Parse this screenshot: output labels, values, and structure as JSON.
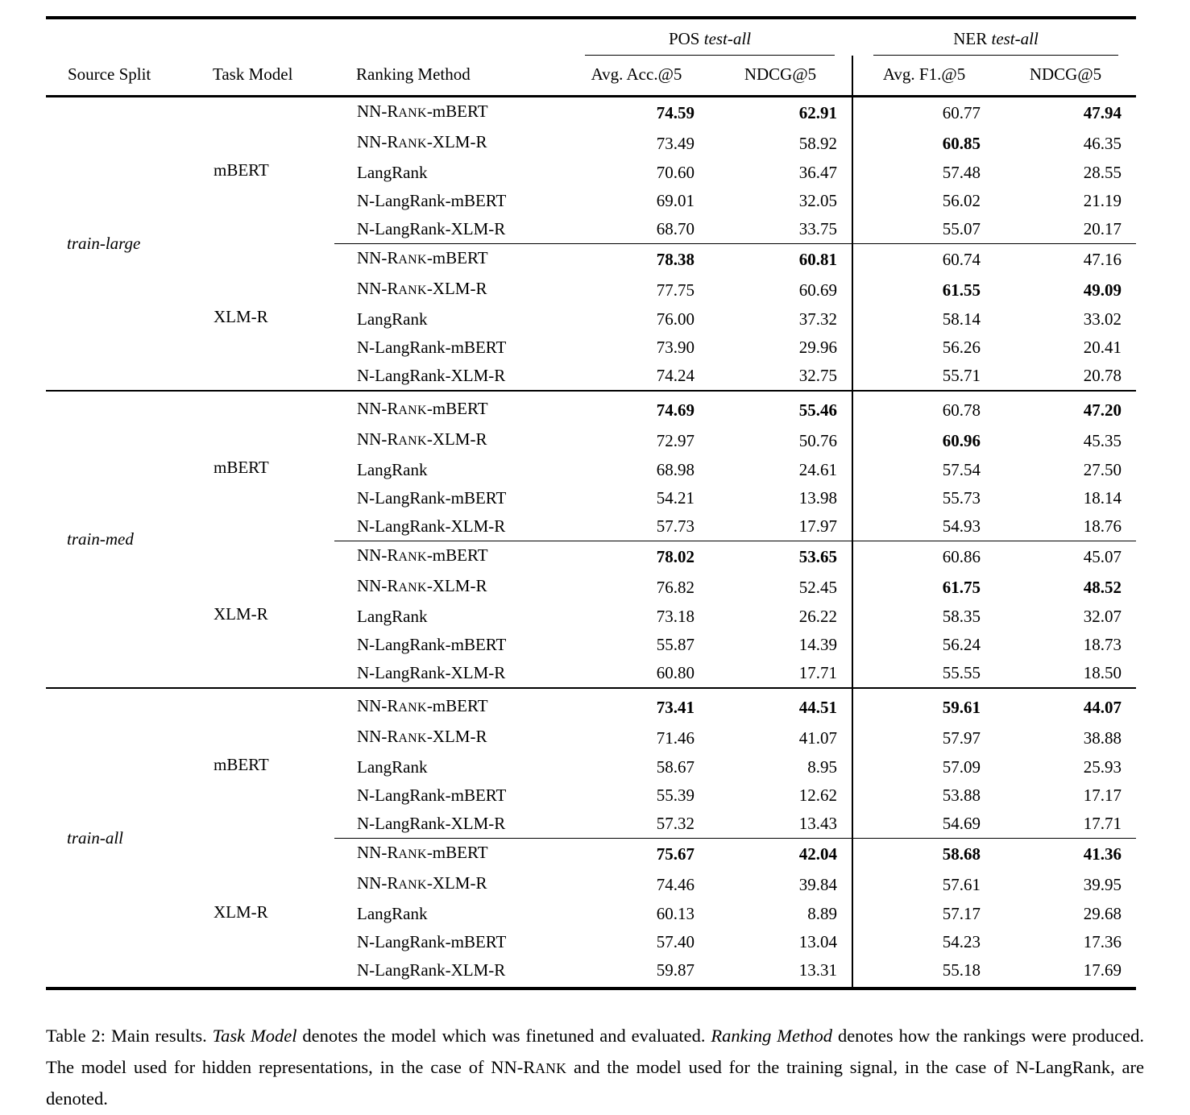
{
  "header": {
    "group_cols": [
      {
        "parts": [
          [
            "POS ",
            ""
          ],
          [
            "test-all",
            "i"
          ]
        ]
      },
      {
        "parts": [
          [
            "NER ",
            ""
          ],
          [
            "test-all",
            "i"
          ]
        ]
      }
    ],
    "columns": [
      "Source Split",
      "Task Model",
      "Ranking Method",
      "Avg. Acc.@5",
      "NDCG@5",
      "Avg. F1.@5",
      "NDCG@5"
    ]
  },
  "methods": [
    [
      [
        "NN-R",
        ""
      ],
      [
        "ANK",
        "sc"
      ],
      [
        "-mBERT",
        ""
      ]
    ],
    [
      [
        "NN-R",
        ""
      ],
      [
        "ANK",
        "sc"
      ],
      [
        "-XLM-R",
        ""
      ]
    ],
    [
      [
        "LangRank",
        ""
      ]
    ],
    [
      [
        "N-LangRank-mBERT",
        ""
      ]
    ],
    [
      [
        "N-LangRank-XLM-R",
        ""
      ]
    ]
  ],
  "groups": [
    {
      "source_split": "train-large",
      "blocks": [
        {
          "task_model": "mBERT",
          "rows": [
            {
              "values": [
                "74.59",
                "62.91",
                "60.77",
                "47.94"
              ],
              "bold": [
                true,
                true,
                false,
                true
              ]
            },
            {
              "values": [
                "73.49",
                "58.92",
                "60.85",
                "46.35"
              ],
              "bold": [
                false,
                false,
                true,
                false
              ]
            },
            {
              "values": [
                "70.60",
                "36.47",
                "57.48",
                "28.55"
              ],
              "bold": [
                false,
                false,
                false,
                false
              ]
            },
            {
              "values": [
                "69.01",
                "32.05",
                "56.02",
                "21.19"
              ],
              "bold": [
                false,
                false,
                false,
                false
              ]
            },
            {
              "values": [
                "68.70",
                "33.75",
                "55.07",
                "20.17"
              ],
              "bold": [
                false,
                false,
                false,
                false
              ]
            }
          ]
        },
        {
          "task_model": "XLM-R",
          "rows": [
            {
              "values": [
                "78.38",
                "60.81",
                "60.74",
                "47.16"
              ],
              "bold": [
                true,
                true,
                false,
                false
              ]
            },
            {
              "values": [
                "77.75",
                "60.69",
                "61.55",
                "49.09"
              ],
              "bold": [
                false,
                false,
                true,
                true
              ]
            },
            {
              "values": [
                "76.00",
                "37.32",
                "58.14",
                "33.02"
              ],
              "bold": [
                false,
                false,
                false,
                false
              ]
            },
            {
              "values": [
                "73.90",
                "29.96",
                "56.26",
                "20.41"
              ],
              "bold": [
                false,
                false,
                false,
                false
              ]
            },
            {
              "values": [
                "74.24",
                "32.75",
                "55.71",
                "20.78"
              ],
              "bold": [
                false,
                false,
                false,
                false
              ]
            }
          ]
        }
      ]
    },
    {
      "source_split": "train-med",
      "blocks": [
        {
          "task_model": "mBERT",
          "rows": [
            {
              "values": [
                "74.69",
                "55.46",
                "60.78",
                "47.20"
              ],
              "bold": [
                true,
                true,
                false,
                true
              ]
            },
            {
              "values": [
                "72.97",
                "50.76",
                "60.96",
                "45.35"
              ],
              "bold": [
                false,
                false,
                true,
                false
              ]
            },
            {
              "values": [
                "68.98",
                "24.61",
                "57.54",
                "27.50"
              ],
              "bold": [
                false,
                false,
                false,
                false
              ]
            },
            {
              "values": [
                "54.21",
                "13.98",
                "55.73",
                "18.14"
              ],
              "bold": [
                false,
                false,
                false,
                false
              ]
            },
            {
              "values": [
                "57.73",
                "17.97",
                "54.93",
                "18.76"
              ],
              "bold": [
                false,
                false,
                false,
                false
              ]
            }
          ]
        },
        {
          "task_model": "XLM-R",
          "rows": [
            {
              "values": [
                "78.02",
                "53.65",
                "60.86",
                "45.07"
              ],
              "bold": [
                true,
                true,
                false,
                false
              ]
            },
            {
              "values": [
                "76.82",
                "52.45",
                "61.75",
                "48.52"
              ],
              "bold": [
                false,
                false,
                true,
                true
              ]
            },
            {
              "values": [
                "73.18",
                "26.22",
                "58.35",
                "32.07"
              ],
              "bold": [
                false,
                false,
                false,
                false
              ]
            },
            {
              "values": [
                "55.87",
                "14.39",
                "56.24",
                "18.73"
              ],
              "bold": [
                false,
                false,
                false,
                false
              ]
            },
            {
              "values": [
                "60.80",
                "17.71",
                "55.55",
                "18.50"
              ],
              "bold": [
                false,
                false,
                false,
                false
              ]
            }
          ]
        }
      ]
    },
    {
      "source_split": "train-all",
      "blocks": [
        {
          "task_model": "mBERT",
          "rows": [
            {
              "values": [
                "73.41",
                "44.51",
                "59.61",
                "44.07"
              ],
              "bold": [
                true,
                true,
                true,
                true
              ]
            },
            {
              "values": [
                "71.46",
                "41.07",
                "57.97",
                "38.88"
              ],
              "bold": [
                false,
                false,
                false,
                false
              ]
            },
            {
              "values": [
                "58.67",
                "8.95",
                "57.09",
                "25.93"
              ],
              "bold": [
                false,
                false,
                false,
                false
              ]
            },
            {
              "values": [
                "55.39",
                "12.62",
                "53.88",
                "17.17"
              ],
              "bold": [
                false,
                false,
                false,
                false
              ]
            },
            {
              "values": [
                "57.32",
                "13.43",
                "54.69",
                "17.71"
              ],
              "bold": [
                false,
                false,
                false,
                false
              ]
            }
          ]
        },
        {
          "task_model": "XLM-R",
          "rows": [
            {
              "values": [
                "75.67",
                "42.04",
                "58.68",
                "41.36"
              ],
              "bold": [
                true,
                true,
                true,
                true
              ]
            },
            {
              "values": [
                "74.46",
                "39.84",
                "57.61",
                "39.95"
              ],
              "bold": [
                false,
                false,
                false,
                false
              ]
            },
            {
              "values": [
                "60.13",
                "8.89",
                "57.17",
                "29.68"
              ],
              "bold": [
                false,
                false,
                false,
                false
              ]
            },
            {
              "values": [
                "57.40",
                "13.04",
                "54.23",
                "17.36"
              ],
              "bold": [
                false,
                false,
                false,
                false
              ]
            },
            {
              "values": [
                "59.87",
                "13.31",
                "55.18",
                "17.69"
              ],
              "bold": [
                false,
                false,
                false,
                false
              ]
            }
          ]
        }
      ]
    }
  ],
  "caption": {
    "parts": [
      [
        "Table 2: Main results. ",
        ""
      ],
      [
        "Task Model",
        "i"
      ],
      [
        " denotes the model which was finetuned and evaluated. ",
        ""
      ],
      [
        "Ranking Method",
        "i"
      ],
      [
        " denotes how the rankings were produced. The model used for hidden representations, in the case of NN-R",
        ""
      ],
      [
        "ANK",
        "sc"
      ],
      [
        " and the model used for the training signal, in the case of N-LangRank, are denoted.",
        ""
      ]
    ]
  }
}
